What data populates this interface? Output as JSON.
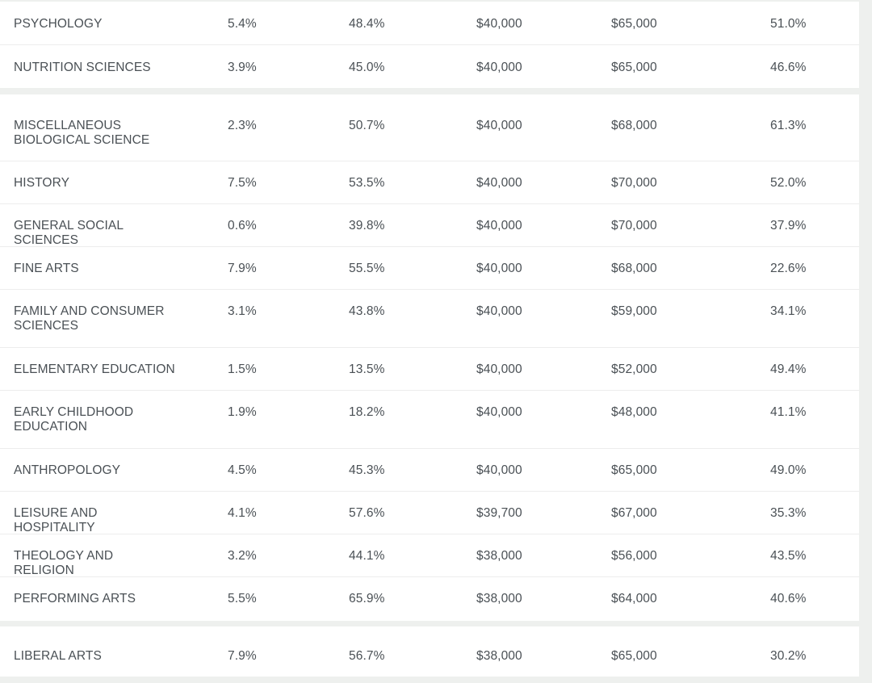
{
  "rows": [
    {
      "major": "PSYCHOLOGY",
      "c1": "5.4%",
      "c2": "48.4%",
      "c3": "$40,000",
      "c4": "$65,000",
      "c5": "51.0%"
    },
    {
      "major": "NUTRITION SCIENCES",
      "c1": "3.9%",
      "c2": "45.0%",
      "c3": "$40,000",
      "c4": "$65,000",
      "c5": "46.6%"
    },
    {
      "major": "MISCELLANEOUS BIOLOGICAL SCIENCE",
      "c1": "2.3%",
      "c2": "50.7%",
      "c3": "$40,000",
      "c4": "$68,000",
      "c5": "61.3%"
    },
    {
      "major": "HISTORY",
      "c1": "7.5%",
      "c2": "53.5%",
      "c3": "$40,000",
      "c4": "$70,000",
      "c5": "52.0%"
    },
    {
      "major": "GENERAL SOCIAL SCIENCES",
      "c1": "0.6%",
      "c2": "39.8%",
      "c3": "$40,000",
      "c4": "$70,000",
      "c5": "37.9%"
    },
    {
      "major": "FINE ARTS",
      "c1": "7.9%",
      "c2": "55.5%",
      "c3": "$40,000",
      "c4": "$68,000",
      "c5": "22.6%"
    },
    {
      "major": "FAMILY AND CONSUMER SCIENCES",
      "c1": "3.1%",
      "c2": "43.8%",
      "c3": "$40,000",
      "c4": "$59,000",
      "c5": "34.1%"
    },
    {
      "major": "ELEMENTARY EDUCATION",
      "c1": "1.5%",
      "c2": "13.5%",
      "c3": "$40,000",
      "c4": "$52,000",
      "c5": "49.4%"
    },
    {
      "major": "EARLY CHILDHOOD EDUCATION",
      "c1": "1.9%",
      "c2": "18.2%",
      "c3": "$40,000",
      "c4": "$48,000",
      "c5": "41.1%"
    },
    {
      "major": "ANTHROPOLOGY",
      "c1": "4.5%",
      "c2": "45.3%",
      "c3": "$40,000",
      "c4": "$65,000",
      "c5": "49.0%"
    },
    {
      "major": "LEISURE AND HOSPITALITY",
      "c1": "4.1%",
      "c2": "57.6%",
      "c3": "$39,700",
      "c4": "$67,000",
      "c5": "35.3%"
    },
    {
      "major": "THEOLOGY AND RELIGION",
      "c1": "3.2%",
      "c2": "44.1%",
      "c3": "$38,000",
      "c4": "$56,000",
      "c5": "43.5%"
    },
    {
      "major": "PERFORMING ARTS",
      "c1": "5.5%",
      "c2": "65.9%",
      "c3": "$38,000",
      "c4": "$64,000",
      "c5": "40.6%"
    },
    {
      "major": "LIBERAL ARTS",
      "c1": "7.9%",
      "c2": "56.7%",
      "c3": "$38,000",
      "c4": "$65,000",
      "c5": "30.2%"
    }
  ]
}
